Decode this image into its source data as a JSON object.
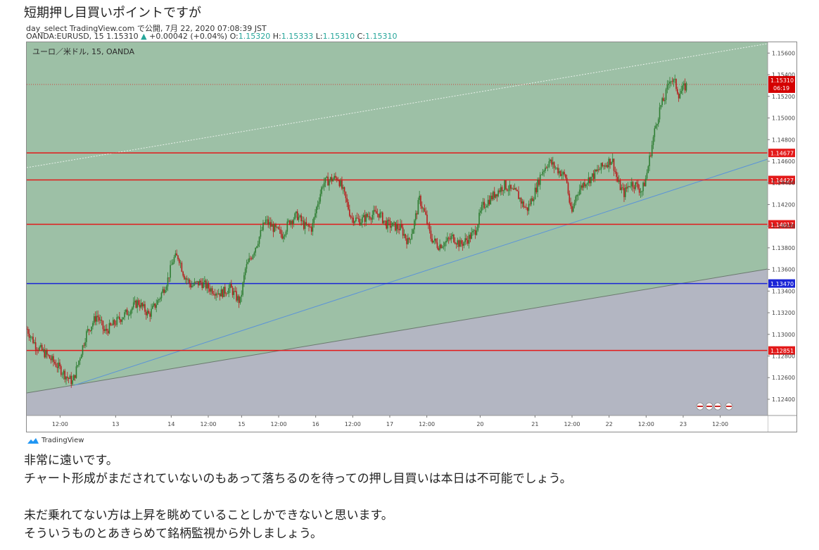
{
  "post": {
    "title": "短期押し目買いポイントですが",
    "paragraphs": [
      "非常に遠いです。",
      "チャート形成がまだされていないのもあって落ちるのを待っての押し目買いは本日は不可能でしょう。",
      "",
      "未だ乗れてない方は上昇を眺めていることしかできないと思います。",
      "そういうものとあきらめて銘柄監視から外しましょう。"
    ]
  },
  "tv_header": {
    "line1": "day_select TradingView.com で公開, 7月 22, 2020 07:08:39 JST",
    "symbol_prefix": "OANDA:EURUSD, 15 1.15310",
    "change": "+0.00042 (+0.04%)",
    "o_label": "O:",
    "o": "1.15320",
    "h_label": "H:",
    "h": "1.15333",
    "l_label": "L:",
    "l": "1.15310",
    "c_label": "C:",
    "c": "1.15310"
  },
  "footer": {
    "brand": "TradingView"
  },
  "colors": {
    "bg_green": "#9dc0a6",
    "bg_gray": "#b3b6c2",
    "hline_red": "#e31a1a",
    "hline_blue": "#1a24d6",
    "trend_blue": "#5b93d8",
    "candle_up": "#2e7d32",
    "candle_down": "#b71c1c"
  },
  "chart_data": {
    "type": "candlestick",
    "legend": "ユーロ／米ドル, 15, OANDA",
    "ylim": [
      1.1225,
      1.157
    ],
    "y_ticks": [
      "1.15600",
      "1.15400",
      "1.15200",
      "1.15000",
      "1.14800",
      "1.14600",
      "1.14400",
      "1.14200",
      "1.14000",
      "1.13800",
      "1.13600",
      "1.13400",
      "1.13200",
      "1.13000",
      "1.12800",
      "1.12600",
      "1.12400"
    ],
    "y_tick_values": [
      1.156,
      1.154,
      1.152,
      1.15,
      1.148,
      1.146,
      1.144,
      1.142,
      1.14,
      1.138,
      1.136,
      1.134,
      1.132,
      1.13,
      1.128,
      1.126,
      1.124
    ],
    "x_ticks": [
      "12:00",
      "13",
      "14",
      "12:00",
      "15",
      "12:00",
      "16",
      "12:00",
      "17",
      "12:00",
      "20",
      "21",
      "12:00",
      "22",
      "12:00",
      "23",
      "12:00"
    ],
    "x_tick_pos": [
      0.045,
      0.12,
      0.195,
      0.245,
      0.29,
      0.34,
      0.39,
      0.44,
      0.49,
      0.54,
      0.612,
      0.686,
      0.736,
      0.786,
      0.836,
      0.886,
      0.936
    ],
    "horizontal_levels": [
      {
        "value": 1.14677,
        "label": "1.14677",
        "color": "red"
      },
      {
        "value": 1.14427,
        "label": "1.14427",
        "color": "red"
      },
      {
        "value": 1.14017,
        "label": "1.14017",
        "color": "red"
      },
      {
        "value": 1.1347,
        "label": "1.13470",
        "color": "blue"
      },
      {
        "value": 1.12851,
        "label": "1.12851",
        "color": "red"
      }
    ],
    "last_price": {
      "value": 1.1531,
      "label": "1.15310",
      "countdown": "06:19"
    },
    "price_path": [
      [
        0.0,
        1.1305
      ],
      [
        0.012,
        1.129
      ],
      [
        0.025,
        1.1282
      ],
      [
        0.04,
        1.1272
      ],
      [
        0.055,
        1.126
      ],
      [
        0.062,
        1.1256
      ],
      [
        0.068,
        1.127
      ],
      [
        0.08,
        1.13
      ],
      [
        0.095,
        1.1318
      ],
      [
        0.105,
        1.1302
      ],
      [
        0.118,
        1.131
      ],
      [
        0.135,
        1.132
      ],
      [
        0.15,
        1.133
      ],
      [
        0.165,
        1.1318
      ],
      [
        0.178,
        1.1332
      ],
      [
        0.19,
        1.135
      ],
      [
        0.198,
        1.137
      ],
      [
        0.205,
        1.1372
      ],
      [
        0.212,
        1.1355
      ],
      [
        0.222,
        1.1345
      ],
      [
        0.235,
        1.1348
      ],
      [
        0.248,
        1.1342
      ],
      [
        0.262,
        1.1338
      ],
      [
        0.275,
        1.1343
      ],
      [
        0.282,
        1.1335
      ],
      [
        0.288,
        1.133
      ],
      [
        0.295,
        1.136
      ],
      [
        0.305,
        1.1375
      ],
      [
        0.315,
        1.1392
      ],
      [
        0.322,
        1.1405
      ],
      [
        0.335,
        1.1397
      ],
      [
        0.345,
        1.1392
      ],
      [
        0.355,
        1.1405
      ],
      [
        0.365,
        1.141
      ],
      [
        0.375,
        1.14
      ],
      [
        0.385,
        1.1398
      ],
      [
        0.392,
        1.142
      ],
      [
        0.4,
        1.144
      ],
      [
        0.41,
        1.1443
      ],
      [
        0.42,
        1.1445
      ],
      [
        0.428,
        1.143
      ],
      [
        0.438,
        1.1408
      ],
      [
        0.45,
        1.1405
      ],
      [
        0.462,
        1.141
      ],
      [
        0.475,
        1.1412
      ],
      [
        0.485,
        1.1402
      ],
      [
        0.495,
        1.14
      ],
      [
        0.505,
        1.1398
      ],
      [
        0.515,
        1.1385
      ],
      [
        0.522,
        1.14
      ],
      [
        0.53,
        1.1425
      ],
      [
        0.538,
        1.141
      ],
      [
        0.545,
        1.139
      ],
      [
        0.555,
        1.1382
      ],
      [
        0.565,
        1.1385
      ],
      [
        0.575,
        1.139
      ],
      [
        0.585,
        1.1383
      ],
      [
        0.595,
        1.1388
      ],
      [
        0.605,
        1.1395
      ],
      [
        0.615,
        1.1418
      ],
      [
        0.625,
        1.1425
      ],
      [
        0.635,
        1.1432
      ],
      [
        0.645,
        1.1438
      ],
      [
        0.655,
        1.1432
      ],
      [
        0.662,
        1.143
      ],
      [
        0.668,
        1.1422
      ],
      [
        0.675,
        1.1415
      ],
      [
        0.685,
        1.143
      ],
      [
        0.695,
        1.145
      ],
      [
        0.705,
        1.146
      ],
      [
        0.712,
        1.1455
      ],
      [
        0.72,
        1.145
      ],
      [
        0.728,
        1.1445
      ],
      [
        0.735,
        1.141
      ],
      [
        0.742,
        1.143
      ],
      [
        0.752,
        1.144
      ],
      [
        0.762,
        1.1445
      ],
      [
        0.772,
        1.1452
      ],
      [
        0.782,
        1.1458
      ],
      [
        0.79,
        1.1462
      ],
      [
        0.798,
        1.144
      ],
      [
        0.806,
        1.143
      ],
      [
        0.814,
        1.144
      ],
      [
        0.822,
        1.1438
      ],
      [
        0.83,
        1.1432
      ],
      [
        0.836,
        1.1445
      ],
      [
        0.842,
        1.1468
      ],
      [
        0.848,
        1.149
      ],
      [
        0.855,
        1.151
      ],
      [
        0.862,
        1.152
      ],
      [
        0.868,
        1.1537
      ],
      [
        0.875,
        1.1532
      ],
      [
        0.88,
        1.1522
      ],
      [
        0.886,
        1.1527
      ],
      [
        0.892,
        1.1531
      ]
    ]
  }
}
